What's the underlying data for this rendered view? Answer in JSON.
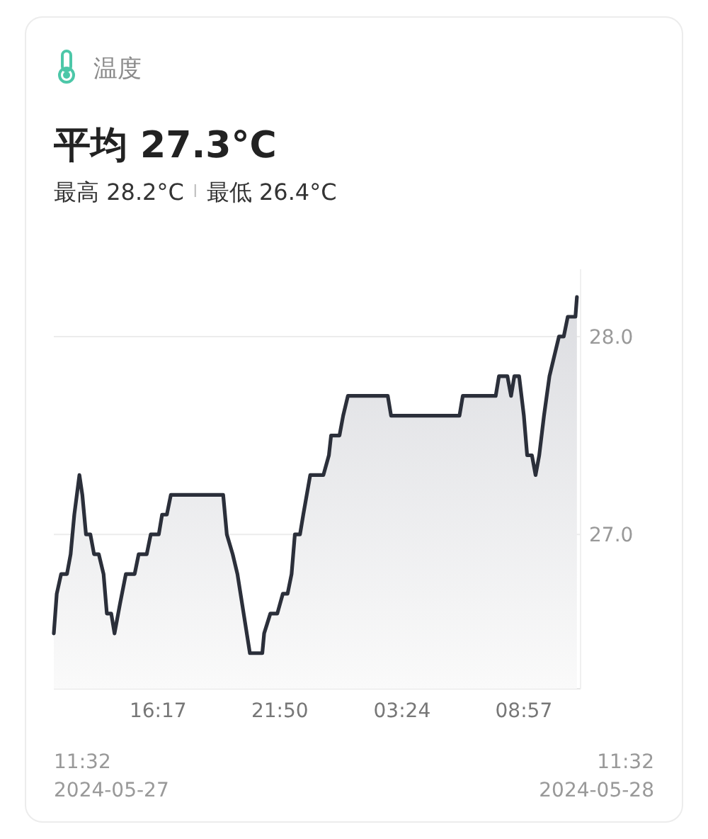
{
  "chart_data": {
    "type": "area",
    "title": "温度",
    "subtitle": "平均 27.3°C",
    "annotations": [
      "最高 28.2°C",
      "最低 26.4°C",
      "11:32",
      "2024-05-27",
      "11:32",
      "2024-05-28"
    ],
    "x": [
      "2024-05-27T11:32",
      "2024-05-27T11:40",
      "2024-05-27T11:52",
      "2024-05-27T12:08",
      "2024-05-27T12:18",
      "2024-05-27T12:28",
      "2024-05-27T12:42",
      "2024-05-27T12:50",
      "2024-05-27T13:00",
      "2024-05-27T13:12",
      "2024-05-27T13:22",
      "2024-05-27T13:35",
      "2024-05-27T13:48",
      "2024-05-27T13:57",
      "2024-05-27T14:09",
      "2024-05-27T14:18",
      "2024-05-27T14:33",
      "2024-05-27T14:49",
      "2024-05-27T15:13",
      "2024-05-27T15:24",
      "2024-05-27T15:46",
      "2024-05-27T15:57",
      "2024-05-27T16:19",
      "2024-05-27T16:28",
      "2024-05-27T16:41",
      "2024-05-27T16:52",
      "2024-05-27T19:15",
      "2024-05-27T19:25",
      "2024-05-27T19:41",
      "2024-05-27T19:54",
      "2024-05-27T20:11",
      "2024-05-27T20:28",
      "2024-05-27T21:02",
      "2024-05-27T21:07",
      "2024-05-27T21:24",
      "2024-05-27T21:43",
      "2024-05-27T21:58",
      "2024-05-27T22:11",
      "2024-05-27T22:22",
      "2024-05-27T22:31",
      "2024-05-27T22:45",
      "2024-05-27T22:54",
      "2024-05-27T23:13",
      "2024-05-27T23:49",
      "2024-05-28T00:04",
      "2024-05-28T00:10",
      "2024-05-28T00:33",
      "2024-05-28T00:43",
      "2024-05-28T00:56",
      "2024-05-28T02:45",
      "2024-05-28T02:54",
      "2024-05-28T06:01",
      "2024-05-28T06:10",
      "2024-05-28T07:40",
      "2024-05-28T07:49",
      "2024-05-28T08:12",
      "2024-05-28T08:22",
      "2024-05-28T08:31",
      "2024-05-28T08:44",
      "2024-05-28T08:57",
      "2024-05-28T09:06",
      "2024-05-28T09:19",
      "2024-05-28T09:29",
      "2024-05-28T09:39",
      "2024-05-28T09:52",
      "2024-05-28T10:07",
      "2024-05-28T10:33",
      "2024-05-28T10:46",
      "2024-05-28T10:57",
      "2024-05-28T11:18",
      "2024-05-28T11:22"
    ],
    "series": [
      {
        "color": "#2b2f3a",
        "values": [
          26.5,
          26.7,
          26.8,
          26.8,
          26.9,
          27.1,
          27.3,
          27.2,
          27.0,
          27.0,
          26.9,
          26.9,
          26.8,
          26.6,
          26.6,
          26.5,
          26.65,
          26.8,
          26.8,
          26.9,
          26.9,
          27.0,
          27.0,
          27.1,
          27.1,
          27.2,
          27.2,
          27.0,
          26.9,
          26.8,
          26.6,
          26.4,
          26.4,
          26.5,
          26.6,
          26.6,
          26.7,
          26.7,
          26.8,
          27.0,
          27.0,
          27.1,
          27.3,
          27.3,
          27.4,
          27.5,
          27.5,
          27.6,
          27.7,
          27.7,
          27.6,
          27.6,
          27.7,
          27.7,
          27.8,
          27.8,
          27.7,
          27.8,
          27.8,
          27.6,
          27.4,
          27.4,
          27.3,
          27.4,
          27.6,
          27.8,
          28.0,
          28.0,
          28.1,
          28.1,
          28.2
        ]
      }
    ],
    "xlim": [
      "2024-05-27T11:32",
      "2024-05-28T11:32"
    ],
    "ylim": [
      26.22,
      28.34
    ],
    "xticks": [
      {
        "value": "2024-05-27T16:17",
        "label": "16:17"
      },
      {
        "value": "2024-05-27T21:50",
        "label": "21:50"
      },
      {
        "value": "2024-05-28T03:24",
        "label": "03:24"
      },
      {
        "value": "2024-05-28T08:57",
        "label": "08:57"
      }
    ],
    "yticks": [
      {
        "value": 27,
        "label": "27.0"
      },
      {
        "value": 28,
        "label": "28.0"
      }
    ],
    "grid": "y",
    "marker": "none",
    "line_style": "solid"
  }
}
